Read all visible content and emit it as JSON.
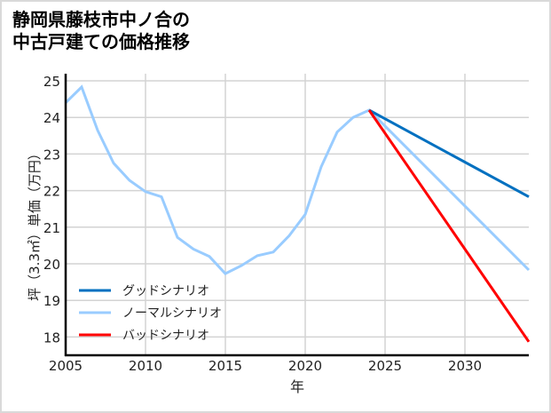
{
  "title": {
    "line1": "静岡県藤枝市中ノ合の",
    "line2": "中古戸建ての価格推移"
  },
  "colors": {
    "good": "#0070C0",
    "normal": "#99CCFF",
    "bad": "#FF0000",
    "grid": "#d3d3d3",
    "axis": "#000000"
  },
  "chart_data": {
    "type": "line",
    "title": "静岡県藤枝市中ノ合の中古戸建ての価格推移",
    "xlabel": "年",
    "ylabel": "坪（3.3㎡）単価（万円）",
    "xlim": [
      2005,
      2034
    ],
    "ylim": [
      17.45,
      25.2
    ],
    "x_ticks": [
      2005,
      2010,
      2015,
      2020,
      2025,
      2030
    ],
    "y_ticks": [
      18,
      19,
      20,
      21,
      22,
      23,
      24,
      25
    ],
    "grid": true,
    "legend_position": "lower left",
    "series": [
      {
        "name": "グッドシナリオ",
        "color": "#0070C0",
        "x": [
          2024,
          2034
        ],
        "values": [
          24.2,
          21.83
        ]
      },
      {
        "name": "ノーマルシナリオ",
        "color": "#99CCFF",
        "x": [
          2005,
          2006,
          2007,
          2008,
          2009,
          2010,
          2011,
          2012,
          2013,
          2014,
          2015,
          2016,
          2017,
          2018,
          2019,
          2020,
          2021,
          2022,
          2023,
          2024,
          2034
        ],
        "values": [
          24.4,
          24.83,
          23.65,
          22.75,
          22.28,
          21.97,
          21.83,
          20.72,
          20.4,
          20.2,
          19.73,
          19.95,
          20.22,
          20.32,
          20.77,
          21.35,
          22.65,
          23.6,
          24.0,
          24.2,
          19.83
        ]
      },
      {
        "name": "バッドシナリオ",
        "color": "#FF0000",
        "x": [
          2024,
          2034
        ],
        "values": [
          24.2,
          17.87
        ]
      }
    ]
  }
}
